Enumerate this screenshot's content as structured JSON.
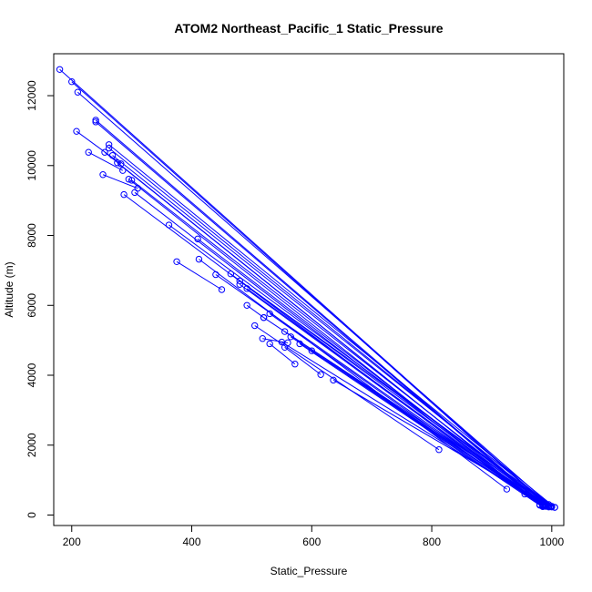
{
  "chart_data": {
    "type": "line",
    "title": "ATOM2 Northeast_Pacific_1 Static_Pressure",
    "xlabel": "Static_Pressure",
    "ylabel": "Altitude (m)",
    "xlim": [
      170,
      1020
    ],
    "ylim": [
      -300,
      13200
    ],
    "x_ticks": [
      200,
      400,
      600,
      800,
      1000
    ],
    "y_ticks": [
      0,
      2000,
      4000,
      6000,
      8000,
      10000,
      12000
    ],
    "grid": false,
    "legend": "none",
    "color": "#0000ff",
    "marker": "open-circle",
    "series": [
      {
        "points": [
          [
            180,
            12750
          ],
          [
            995,
            250
          ]
        ]
      },
      {
        "points": [
          [
            200,
            12400
          ],
          [
            990,
            300
          ]
        ]
      },
      {
        "points": [
          [
            210,
            12100
          ],
          [
            1000,
            250
          ]
        ]
      },
      {
        "points": [
          [
            240,
            11300
          ],
          [
            990,
            250
          ]
        ]
      },
      {
        "points": [
          [
            240,
            11250
          ],
          [
            985,
            300
          ]
        ]
      },
      {
        "points": [
          [
            208,
            10980
          ],
          [
            282,
            10050
          ]
        ]
      },
      {
        "points": [
          [
            228,
            10380
          ],
          [
            285,
            9860
          ]
        ]
      },
      {
        "points": [
          [
            262,
            10600
          ],
          [
            1005,
            220
          ]
        ]
      },
      {
        "points": [
          [
            262,
            10500
          ],
          [
            995,
            300
          ]
        ]
      },
      {
        "points": [
          [
            255,
            10380
          ],
          [
            990,
            250
          ]
        ]
      },
      {
        "points": [
          [
            268,
            10290
          ],
          [
            1000,
            250
          ]
        ]
      },
      {
        "points": [
          [
            276,
            10080
          ],
          [
            988,
            280
          ]
        ]
      },
      {
        "points": [
          [
            252,
            9740
          ],
          [
            310,
            9350
          ]
        ]
      },
      {
        "points": [
          [
            295,
            9610
          ],
          [
            980,
            300
          ]
        ]
      },
      {
        "points": [
          [
            300,
            9580
          ],
          [
            995,
            250
          ]
        ]
      },
      {
        "points": [
          [
            305,
            9230
          ],
          [
            985,
            260
          ]
        ]
      },
      {
        "points": [
          [
            287,
            9170
          ],
          [
            955,
            600
          ]
        ]
      },
      {
        "points": [
          [
            362,
            8300
          ],
          [
            1000,
            230
          ]
        ]
      },
      {
        "points": [
          [
            410,
            7900
          ],
          [
            990,
            260
          ]
        ]
      },
      {
        "points": [
          [
            375,
            7250
          ],
          [
            450,
            6450
          ]
        ]
      },
      {
        "points": [
          [
            412,
            7320
          ],
          [
            925,
            740
          ]
        ]
      },
      {
        "points": [
          [
            440,
            6880
          ],
          [
            988,
            260
          ]
        ]
      },
      {
        "points": [
          [
            465,
            6900
          ],
          [
            995,
            230
          ]
        ]
      },
      {
        "points": [
          [
            480,
            6700
          ],
          [
            1005,
            220
          ]
        ]
      },
      {
        "points": [
          [
            480,
            6600
          ],
          [
            985,
            280
          ]
        ]
      },
      {
        "points": [
          [
            492,
            6480
          ],
          [
            990,
            250
          ]
        ]
      },
      {
        "points": [
          [
            530,
            5760
          ],
          [
            985,
            240
          ]
        ]
      },
      {
        "points": [
          [
            520,
            5650
          ],
          [
            990,
            260
          ]
        ]
      },
      {
        "points": [
          [
            492,
            6000
          ],
          [
            520,
            5650
          ]
        ]
      },
      {
        "points": [
          [
            505,
            5420
          ],
          [
            812,
            1870
          ]
        ]
      },
      {
        "points": [
          [
            555,
            5250
          ],
          [
            998,
            240
          ]
        ]
      },
      {
        "points": [
          [
            565,
            5100
          ],
          [
            985,
            300
          ]
        ]
      },
      {
        "points": [
          [
            518,
            5050
          ],
          [
            560,
            4930
          ]
        ]
      },
      {
        "points": [
          [
            550,
            4950
          ],
          [
            990,
            250
          ]
        ]
      },
      {
        "points": [
          [
            580,
            4900
          ],
          [
            980,
            280
          ]
        ]
      },
      {
        "points": [
          [
            600,
            4700
          ],
          [
            985,
            250
          ]
        ]
      },
      {
        "points": [
          [
            572,
            4320
          ],
          [
            530,
            4900
          ]
        ]
      },
      {
        "points": [
          [
            615,
            4020
          ],
          [
            555,
            4800
          ]
        ]
      },
      {
        "points": [
          [
            636,
            3860
          ],
          [
            995,
            260
          ]
        ]
      }
    ]
  }
}
